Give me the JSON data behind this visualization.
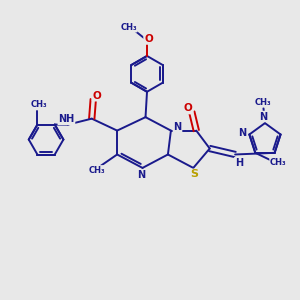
{
  "bg_color": "#e8e8e8",
  "bond_color": "#1a1a8c",
  "bond_width": 1.4,
  "atom_colors": {
    "C": "#1a1a8c",
    "N": "#1a1a8c",
    "O": "#cc0000",
    "S": "#b8a000",
    "H": "#1a1a8c"
  },
  "font_size": 7.0,
  "figsize": [
    3.0,
    3.0
  ],
  "dpi": 100,
  "xlim": [
    0,
    10
  ],
  "ylim": [
    0,
    10
  ]
}
